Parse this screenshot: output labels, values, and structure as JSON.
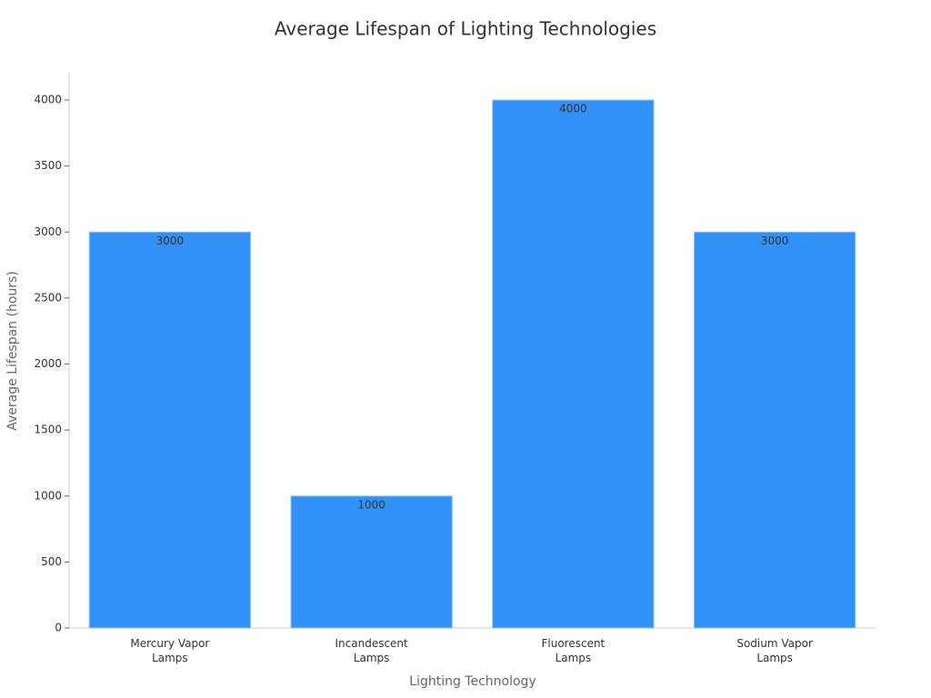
{
  "chart_data": {
    "type": "bar",
    "title": "Average Lifespan of Lighting Technologies",
    "x_label": "Lighting Technology",
    "y_label": "Average Lifespan (hours)",
    "categories": [
      "Mercury Vapor Lamps",
      "Incandescent Lamps",
      "Fluorescent Lamps",
      "Sodium Vapor Lamps"
    ],
    "values": [
      3000,
      1000,
      4000,
      3000
    ],
    "color": "#3091f9",
    "ylim": [
      0,
      4200
    ],
    "yticks": [
      0,
      500,
      1000,
      1500,
      2000,
      2500,
      3000,
      3500,
      4000
    ],
    "grid": false
  }
}
